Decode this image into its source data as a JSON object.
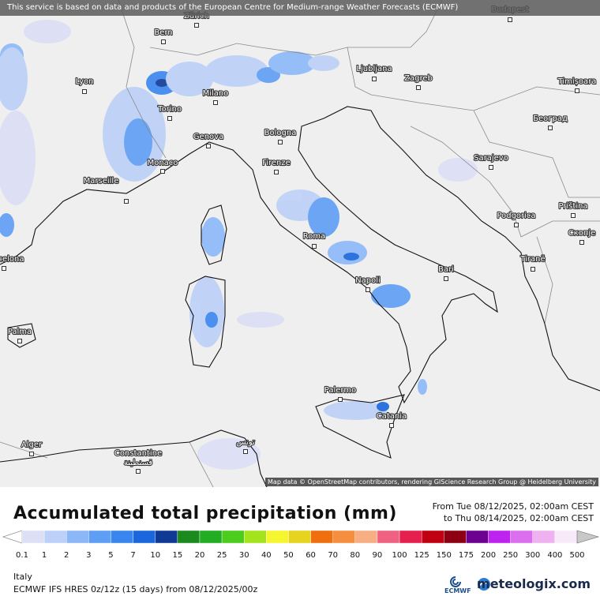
{
  "header": {
    "notice": "This service is based on data and products of the European Centre for Medium-range Weather Forecasts (ECMWF)"
  },
  "map": {
    "cities": [
      "Budapest",
      "Zürich",
      "Bern",
      "Lyon",
      "Ljubljana",
      "Zagreb",
      "Timișoara",
      "Milano",
      "Torino",
      "Београд",
      "Bologna",
      "Genova",
      "Sarajevo",
      "Monaco",
      "Firenze",
      "Marseille",
      "Priština",
      "Podgorica",
      "Скопје",
      "Roma",
      "celona",
      "Tiranë",
      "Bari",
      "Napoli",
      "Palma",
      "Palermo",
      "Catania",
      "Alger",
      "Constantine",
      "قسنطينة",
      "تونس"
    ],
    "attribution": "Map data © OpenStreetMap contributors, rendering GIScience Research Group @ Heidelberg University"
  },
  "footer": {
    "title": "Accumulated total precipitation (mm)",
    "period_from": "From Tue 08/12/2025, 02:00am CEST",
    "period_to": "to Thu 08/14/2025, 02:00am CEST",
    "legend": {
      "values": [
        0.1,
        1,
        2,
        3,
        5,
        7,
        10,
        15,
        20,
        25,
        30,
        40,
        50,
        60,
        70,
        80,
        90,
        100,
        125,
        150,
        175,
        200,
        250,
        300,
        400,
        500
      ],
      "colors": [
        "#ffffff",
        "#dcdff5",
        "#bcd0f8",
        "#8cb8f8",
        "#5e9ef4",
        "#3a86ef",
        "#1a66dc",
        "#103a96",
        "#1a8a1e",
        "#22ad22",
        "#4ccc1c",
        "#a4e41c",
        "#f6f62e",
        "#e6d41e",
        "#ef6e0e",
        "#f58e3e",
        "#f7ae82",
        "#f06282",
        "#e6204e",
        "#c00012",
        "#8c0012",
        "#6c0090",
        "#bd22ee",
        "#dc6ef0",
        "#efb2f0",
        "#f8eaf8",
        "#c8c8c8"
      ]
    },
    "region": "Italy",
    "model": "ECMWF IFS HRES 0z/12z (15 days) from  08/12/2025/00z",
    "ecmwf_logo": "ECMWF",
    "brand": "meteologix.com"
  }
}
